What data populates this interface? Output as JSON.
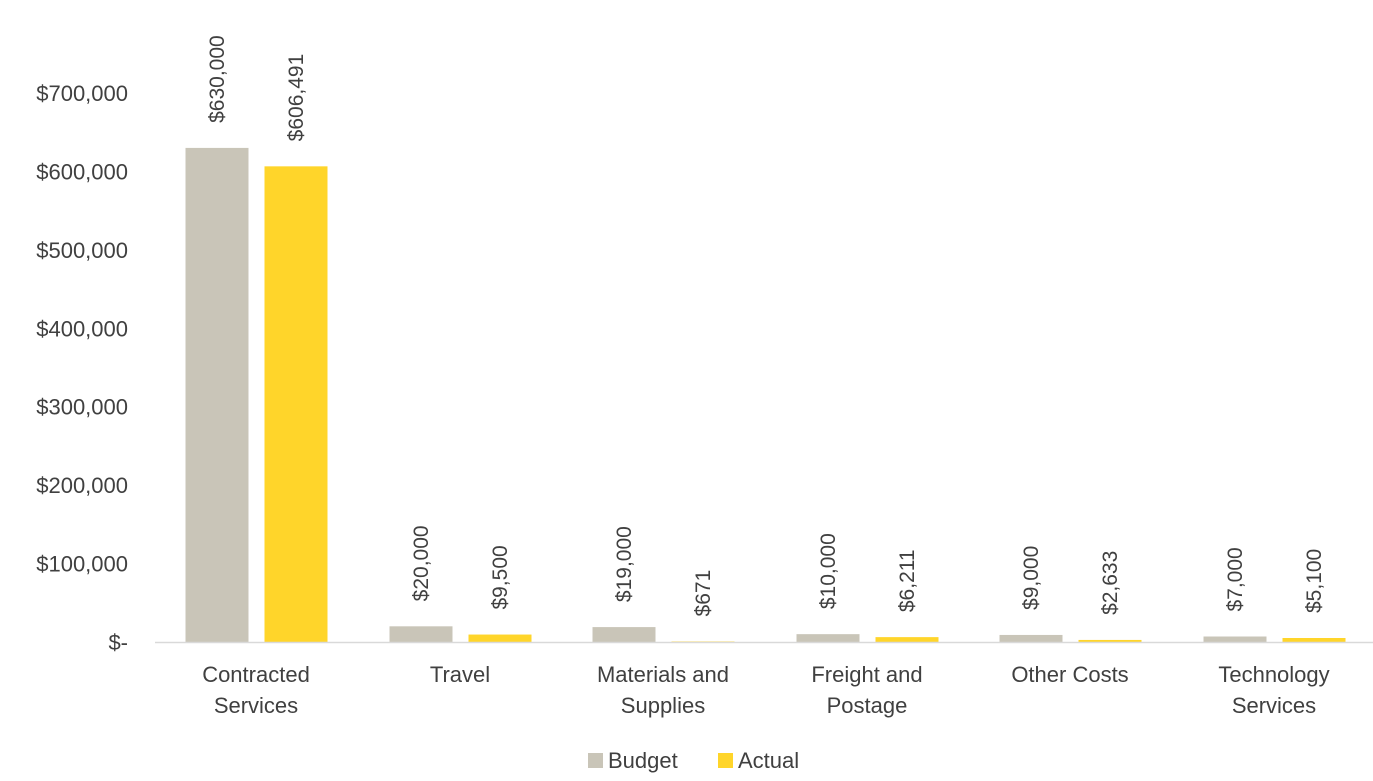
{
  "chart_data": {
    "type": "bar",
    "categories": [
      [
        "Contracted",
        "Services"
      ],
      [
        "Travel"
      ],
      [
        "Materials and",
        "Supplies"
      ],
      [
        "Freight and",
        "Postage"
      ],
      [
        "Other Costs"
      ],
      [
        "Technology",
        "Services"
      ]
    ],
    "series": [
      {
        "name": "Budget",
        "color": "#c9c5b8",
        "values": [
          630000,
          20000,
          19000,
          10000,
          9000,
          7000
        ],
        "labels": [
          "$630,000",
          "$20,000",
          "$19,000",
          "$10,000",
          "$9,000",
          "$7,000"
        ]
      },
      {
        "name": "Actual",
        "color": "#ffd52a",
        "values": [
          606491,
          9500,
          671,
          6211,
          2633,
          5100
        ],
        "labels": [
          "$606,491",
          "$9,500",
          "$671",
          "$6,211",
          "$2,633",
          "$5,100"
        ]
      }
    ],
    "ylim": [
      0,
      700000
    ],
    "y_ticks": [
      {
        "value": 0,
        "label": "$-"
      },
      {
        "value": 100000,
        "label": "$100,000"
      },
      {
        "value": 200000,
        "label": "$200,000"
      },
      {
        "value": 300000,
        "label": "$300,000"
      },
      {
        "value": 400000,
        "label": "$400,000"
      },
      {
        "value": 500000,
        "label": "$500,000"
      },
      {
        "value": 600000,
        "label": "$600,000"
      },
      {
        "value": 700000,
        "label": "$700,000"
      }
    ],
    "title": "",
    "xlabel": "",
    "ylabel": "",
    "grid": false,
    "legend_position": "bottom",
    "axis_color": "#d9d9d9"
  }
}
